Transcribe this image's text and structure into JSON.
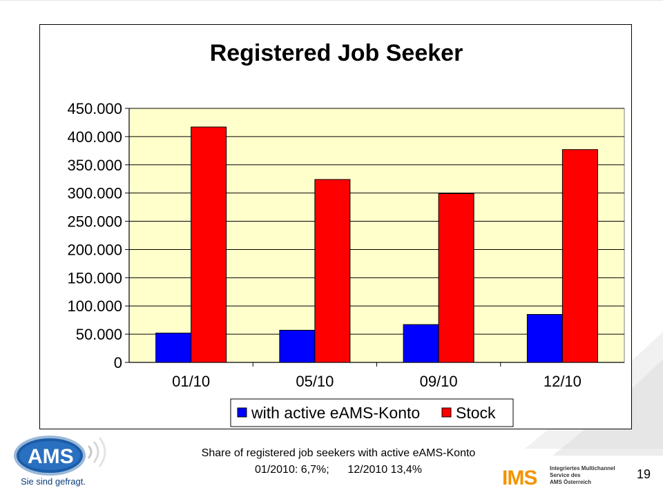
{
  "chart_data": {
    "type": "bar",
    "title": "Registered Job Seeker",
    "xlabel": "",
    "ylabel": "",
    "categories": [
      "01/10",
      "05/10",
      "09/10",
      "12/10"
    ],
    "series": [
      {
        "name": "with active eAMS-Konto",
        "color": "#0000ff",
        "values": [
          52000,
          57000,
          67000,
          85000
        ]
      },
      {
        "name": "Stock",
        "color": "#ff0000",
        "values": [
          417000,
          324000,
          299000,
          377000
        ]
      }
    ],
    "ylim": [
      0,
      450000
    ],
    "yticks": [
      0,
      50000,
      100000,
      150000,
      200000,
      250000,
      300000,
      350000,
      400000,
      450000
    ],
    "ytick_labels": [
      "0",
      "50.000",
      "100.000",
      "150.000",
      "200.000",
      "250.000",
      "300.000",
      "350.000",
      "400.000",
      "450.000"
    ],
    "plot_background": "#ffffcc",
    "grid": true,
    "legend_position": "bottom"
  },
  "caption": {
    "line1": "Share of registered job seekers with active eAMS-Konto",
    "line2": "01/2010: 6,7%;      12/2010 13,4%"
  },
  "page_number": "19",
  "ams_logo": {
    "text": "AMS",
    "slogan": "Sie sind gefragt."
  },
  "ims_logo": {
    "letters": "IMS",
    "line1": "Integriertes Multichannel",
    "line2": "Service des",
    "line3": "AMS Österreich",
    "color": "#f29400"
  }
}
